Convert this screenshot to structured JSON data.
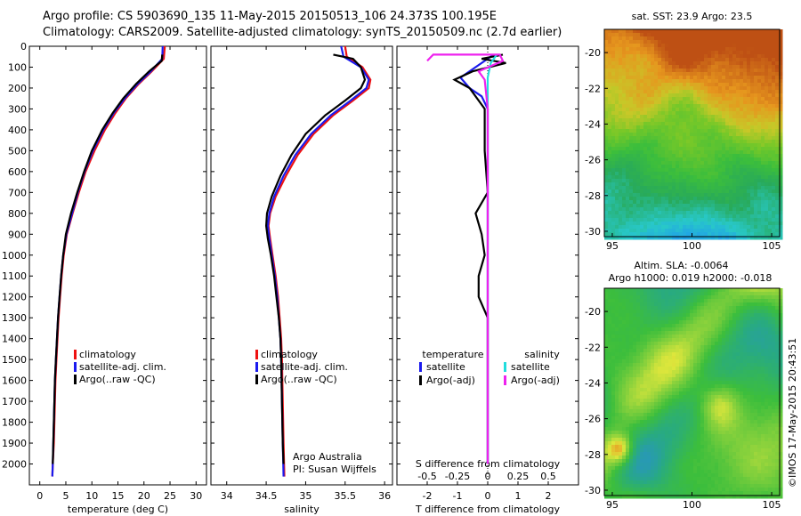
{
  "header": {
    "line1": "Argo profile: CS 5903690_135 11-May-2015 20150513_106 24.373S 100.195E",
    "line2": "Climatology: CARS2009. Satellite-adjusted climatology: synTS_20150509.nc (2.7d earlier)"
  },
  "credit": "©IMOS 17-May-2015 20:43:51",
  "colors": {
    "red": "#ee1111",
    "blue": "#1a1aee",
    "black": "#000000",
    "cyan": "#22dddd",
    "magenta": "#ee22ee"
  },
  "chart_data": [
    {
      "type": "line",
      "xlabel": "temperature (deg C)",
      "ylim": [
        2100,
        0
      ],
      "xlim": [
        -2,
        32
      ],
      "xticks": [
        "0",
        "5",
        "10",
        "15",
        "20",
        "25",
        "30"
      ],
      "yticks": [
        "0",
        "100",
        "200",
        "300",
        "400",
        "500",
        "600",
        "700",
        "800",
        "900",
        "1000",
        "1100",
        "1200",
        "1300",
        "1400",
        "1500",
        "1600",
        "1700",
        "1800",
        "1900",
        "2000"
      ],
      "legend": [
        "climatology",
        "satellite-adj. clim.",
        "Argo(..raw -QC)"
      ],
      "series": [
        {
          "name": "climatology",
          "color": "red",
          "points": [
            [
              24.0,
              0
            ],
            [
              23.8,
              60
            ],
            [
              21.5,
              120
            ],
            [
              19.0,
              180
            ],
            [
              16.5,
              250
            ],
            [
              14.5,
              320
            ],
            [
              12.5,
              400
            ],
            [
              10.5,
              500
            ],
            [
              8.8,
              600
            ],
            [
              7.5,
              700
            ],
            [
              6.3,
              800
            ],
            [
              5.2,
              900
            ],
            [
              4.6,
              1000
            ],
            [
              4.2,
              1100
            ],
            [
              3.9,
              1200
            ],
            [
              3.6,
              1300
            ],
            [
              3.4,
              1400
            ],
            [
              3.2,
              1500
            ],
            [
              3.0,
              1600
            ],
            [
              2.9,
              1700
            ],
            [
              2.8,
              1800
            ],
            [
              2.7,
              1900
            ],
            [
              2.5,
              2000
            ],
            [
              2.4,
              2060
            ]
          ]
        },
        {
          "name": "satellite-adj. clim.",
          "color": "blue",
          "points": [
            [
              23.6,
              0
            ],
            [
              23.5,
              60
            ],
            [
              21.3,
              120
            ],
            [
              18.8,
              180
            ],
            [
              16.3,
              250
            ],
            [
              14.2,
              320
            ],
            [
              12.2,
              400
            ],
            [
              10.2,
              500
            ],
            [
              8.6,
              600
            ],
            [
              7.3,
              700
            ],
            [
              6.2,
              800
            ],
            [
              5.1,
              900
            ],
            [
              4.5,
              1000
            ],
            [
              4.1,
              1100
            ],
            [
              3.8,
              1200
            ],
            [
              3.5,
              1300
            ],
            [
              3.3,
              1400
            ],
            [
              3.1,
              1500
            ],
            [
              2.9,
              1600
            ],
            [
              2.8,
              1700
            ],
            [
              2.7,
              1800
            ],
            [
              2.6,
              1900
            ],
            [
              2.5,
              2000
            ],
            [
              2.4,
              2060
            ]
          ]
        },
        {
          "name": "Argo(..raw -QC)",
          "color": "black",
          "points": [
            [
              23.5,
              40
            ],
            [
              23.4,
              70
            ],
            [
              21.0,
              120
            ],
            [
              18.5,
              180
            ],
            [
              16.0,
              250
            ],
            [
              14.0,
              320
            ],
            [
              12.0,
              400
            ],
            [
              10.0,
              500
            ],
            [
              8.5,
              600
            ],
            [
              7.2,
              700
            ],
            [
              6.0,
              800
            ],
            [
              5.0,
              900
            ],
            [
              4.5,
              1000
            ],
            [
              4.1,
              1100
            ],
            [
              3.8,
              1200
            ],
            [
              3.5,
              1300
            ],
            [
              3.3,
              1400
            ],
            [
              3.1,
              1500
            ],
            [
              2.9,
              1600
            ],
            [
              2.8,
              1700
            ],
            [
              2.7,
              1800
            ],
            [
              2.6,
              1900
            ],
            [
              2.5,
              2000
            ]
          ]
        }
      ]
    },
    {
      "type": "line",
      "xlabel": "salinity",
      "ylim": [
        2100,
        0
      ],
      "xlim": [
        33.8,
        36.1
      ],
      "xticks": [
        "34",
        "34.5",
        "35",
        "35.5",
        "36"
      ],
      "legend": [
        "climatology",
        "satellite-adj. clim.",
        "Argo(..raw -QC)"
      ],
      "annotations": [
        "Argo Australia",
        "PI: Susan Wijffels"
      ],
      "series": [
        {
          "name": "climatology",
          "color": "red",
          "points": [
            [
              35.5,
              0
            ],
            [
              35.52,
              50
            ],
            [
              35.72,
              100
            ],
            [
              35.82,
              160
            ],
            [
              35.8,
              200
            ],
            [
              35.6,
              260
            ],
            [
              35.35,
              330
            ],
            [
              35.1,
              420
            ],
            [
              34.9,
              520
            ],
            [
              34.75,
              620
            ],
            [
              34.62,
              720
            ],
            [
              34.55,
              800
            ],
            [
              34.53,
              860
            ],
            [
              34.55,
              920
            ],
            [
              34.58,
              1000
            ],
            [
              34.62,
              1100
            ],
            [
              34.65,
              1200
            ],
            [
              34.67,
              1300
            ],
            [
              34.69,
              1400
            ],
            [
              34.7,
              1500
            ],
            [
              34.71,
              1700
            ],
            [
              34.72,
              1900
            ],
            [
              34.73,
              2060
            ]
          ]
        },
        {
          "name": "satellite-adj. clim.",
          "color": "blue",
          "points": [
            [
              35.45,
              0
            ],
            [
              35.48,
              50
            ],
            [
              35.7,
              100
            ],
            [
              35.8,
              160
            ],
            [
              35.77,
              200
            ],
            [
              35.57,
              260
            ],
            [
              35.32,
              330
            ],
            [
              35.07,
              420
            ],
            [
              34.87,
              520
            ],
            [
              34.72,
              620
            ],
            [
              34.6,
              720
            ],
            [
              34.54,
              800
            ],
            [
              34.52,
              860
            ],
            [
              34.54,
              920
            ],
            [
              34.57,
              1000
            ],
            [
              34.61,
              1100
            ],
            [
              34.64,
              1200
            ],
            [
              34.66,
              1300
            ],
            [
              34.68,
              1400
            ],
            [
              34.69,
              1500
            ],
            [
              34.7,
              1700
            ],
            [
              34.71,
              1900
            ],
            [
              34.72,
              2060
            ]
          ]
        },
        {
          "name": "Argo(..raw -QC)",
          "color": "black",
          "points": [
            [
              35.35,
              40
            ],
            [
              35.6,
              60
            ],
            [
              35.7,
              100
            ],
            [
              35.75,
              160
            ],
            [
              35.7,
              200
            ],
            [
              35.5,
              260
            ],
            [
              35.25,
              330
            ],
            [
              35.0,
              420
            ],
            [
              34.82,
              520
            ],
            [
              34.68,
              620
            ],
            [
              34.57,
              720
            ],
            [
              34.51,
              800
            ],
            [
              34.5,
              860
            ],
            [
              34.52,
              920
            ],
            [
              34.56,
              1000
            ],
            [
              34.6,
              1100
            ],
            [
              34.63,
              1200
            ],
            [
              34.66,
              1300
            ],
            [
              34.68,
              1400
            ],
            [
              34.69,
              1500
            ],
            [
              34.7,
              1700
            ],
            [
              34.71,
              1900
            ],
            [
              34.72,
              2000
            ]
          ]
        }
      ]
    },
    {
      "type": "line",
      "xlabel": "T difference from climatology",
      "xlabel_top": "S difference from climatology",
      "ylim": [
        2100,
        0
      ],
      "xlim": [
        -3,
        3
      ],
      "xticks": [
        "-2",
        "-1",
        "0",
        "1",
        "2"
      ],
      "xticks_s": [
        "-0.5",
        "-0.25",
        "0",
        "0.25",
        "0.5"
      ],
      "legend_groups": [
        {
          "title": "temperature",
          "items": [
            "satellite",
            "Argo(-adj)"
          ]
        },
        {
          "title": "salinity",
          "items": [
            "satellite",
            "Argo(-adj)"
          ]
        }
      ],
      "series": [
        {
          "name": "temperature satellite",
          "color": "blue",
          "points": [
            [
              0.2,
              40
            ],
            [
              -0.3,
              90
            ],
            [
              -0.9,
              150
            ],
            [
              -0.6,
              200
            ],
            [
              -0.2,
              240
            ],
            [
              0.0,
              300
            ],
            [
              0.0,
              400
            ],
            [
              0.0,
              600
            ],
            [
              0.0,
              1000
            ],
            [
              0.0,
              1600
            ],
            [
              0.0,
              2000
            ]
          ]
        },
        {
          "name": "temperature Argo(-adj)",
          "color": "black",
          "points": [
            [
              0.5,
              40
            ],
            [
              -0.2,
              60
            ],
            [
              0.6,
              80
            ],
            [
              -0.5,
              120
            ],
            [
              -1.1,
              160
            ],
            [
              -0.6,
              200
            ],
            [
              -0.1,
              300
            ],
            [
              -0.1,
              500
            ],
            [
              0.0,
              700
            ],
            [
              -0.4,
              800
            ],
            [
              -0.2,
              900
            ],
            [
              -0.1,
              1000
            ],
            [
              -0.3,
              1100
            ],
            [
              -0.3,
              1200
            ],
            [
              0.0,
              1300
            ],
            [
              0.0,
              1500
            ],
            [
              0.0,
              1800
            ],
            [
              0.0,
              2000
            ]
          ]
        },
        {
          "name": "salinity satellite",
          "color": "cyan",
          "points": [
            [
              0.3,
              40
            ],
            [
              0.1,
              80
            ],
            [
              0.0,
              150
            ],
            [
              0.0,
              300
            ],
            [
              0.0,
              600
            ],
            [
              0.0,
              1000
            ],
            [
              0.0,
              1500
            ],
            [
              0.0,
              2000
            ]
          ]
        },
        {
          "name": "salinity Argo(-adj)",
          "color": "magenta",
          "points": [
            [
              -2.0,
              70
            ],
            [
              -1.8,
              40
            ],
            [
              0.4,
              40
            ],
            [
              0.5,
              70
            ],
            [
              -0.3,
              120
            ],
            [
              -0.1,
              160
            ],
            [
              0.0,
              300
            ],
            [
              0.0,
              500
            ],
            [
              0.0,
              800
            ],
            [
              0.0,
              1200
            ],
            [
              0.0,
              1600
            ],
            [
              0.0,
              2000
            ]
          ]
        }
      ]
    },
    {
      "type": "heatmap",
      "title": "sat. SST: 23.9 Argo: 23.5",
      "xlim": [
        94.5,
        105.5
      ],
      "ylim": [
        -30.3,
        -18.7
      ],
      "xticks": [
        "95",
        "100",
        "105"
      ],
      "yticks": [
        "-20",
        "-22",
        "-24",
        "-26",
        "-28",
        "-30"
      ]
    },
    {
      "type": "heatmap",
      "title": "Altim. SLA: -0.0064",
      "subtitle": "Argo h1000: 0.019 h2000: -0.018",
      "xlim": [
        94.5,
        105.5
      ],
      "ylim": [
        -30.3,
        -18.7
      ],
      "xticks": [
        "95",
        "100",
        "105"
      ],
      "yticks": [
        "-20",
        "-22",
        "-24",
        "-26",
        "-28",
        "-30"
      ]
    }
  ]
}
